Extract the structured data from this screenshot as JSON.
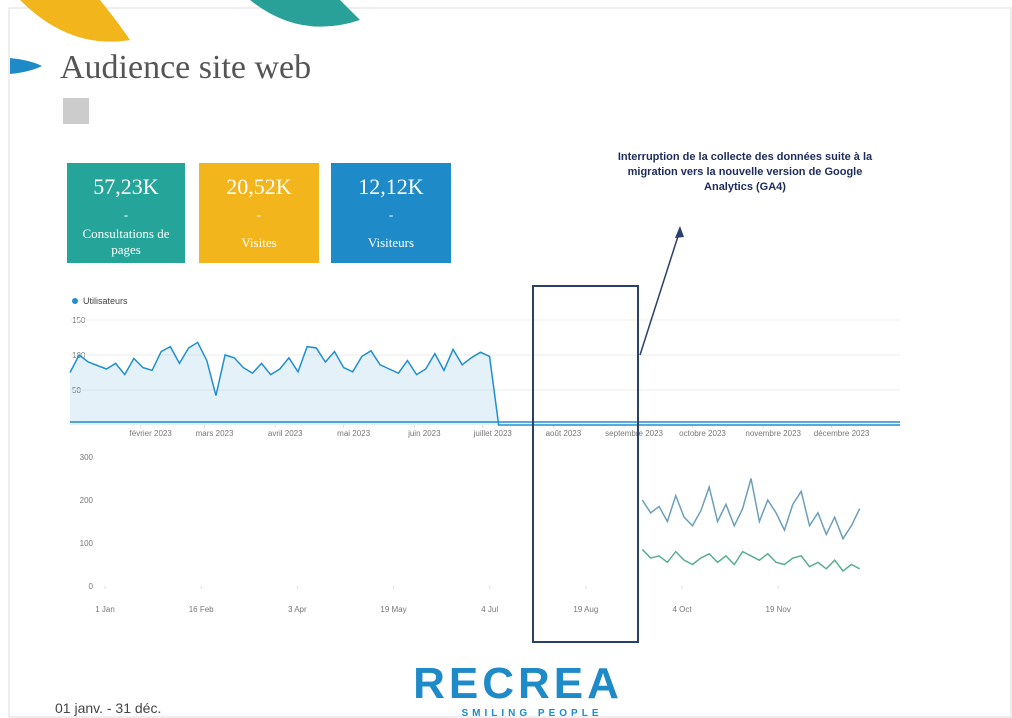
{
  "title": "Audience site web",
  "kpis": [
    {
      "value": "57,23K",
      "separator": "-",
      "label": "Consultations de pages"
    },
    {
      "value": "20,52K",
      "separator": "-",
      "label": "Visites"
    },
    {
      "value": "12,12K",
      "separator": "-",
      "label": "Visiteurs"
    }
  ],
  "annotation": "Interruption de la collecte des données suite à la migration vers la nouvelle version de Google Analytics (GA4)",
  "date_range": "01 janv. - 31 déc.",
  "logo": {
    "name": "RECREA",
    "tagline": "SMILING PEOPLE"
  },
  "chart_data": [
    {
      "type": "line",
      "area": true,
      "grid": true,
      "x": [
        1,
        5,
        9,
        13,
        17,
        21,
        25,
        29,
        33,
        37,
        41,
        45,
        49,
        53,
        57,
        61,
        65,
        69,
        73,
        77,
        81,
        85,
        89,
        93,
        97,
        101,
        105,
        109,
        113,
        117,
        121,
        125,
        129,
        133,
        137,
        141,
        145,
        149,
        153,
        157,
        161,
        165,
        169,
        173,
        177,
        181,
        185,
        189,
        365
      ],
      "series": [
        {
          "name": "Utilisateurs",
          "color": "#1f8fcf",
          "values": [
            75,
            100,
            90,
            85,
            80,
            88,
            72,
            95,
            82,
            78,
            105,
            112,
            88,
            110,
            118,
            92,
            42,
            100,
            96,
            82,
            74,
            88,
            72,
            80,
            96,
            76,
            112,
            110,
            90,
            105,
            82,
            76,
            98,
            106,
            86,
            80,
            74,
            92,
            72,
            80,
            102,
            78,
            108,
            86,
            96,
            104,
            98,
            0,
            0
          ]
        }
      ],
      "xlim": [
        1,
        365
      ],
      "ylim": [
        0,
        150
      ],
      "yticks": [
        50,
        100,
        150
      ],
      "xticks": [
        {
          "value": 32,
          "label": "février 2023"
        },
        {
          "value": 60,
          "label": "mars 2023"
        },
        {
          "value": 91,
          "label": "avril 2023"
        },
        {
          "value": 121,
          "label": "mai 2023"
        },
        {
          "value": 152,
          "label": "juin 2023"
        },
        {
          "value": 182,
          "label": "juillet 2023"
        },
        {
          "value": 213,
          "label": "août 2023"
        },
        {
          "value": 244,
          "label": "septembre 2023"
        },
        {
          "value": 274,
          "label": "octobre 2023"
        },
        {
          "value": 305,
          "label": "novembre 2023"
        },
        {
          "value": 335,
          "label": "décembre 2023"
        }
      ]
    },
    {
      "type": "line",
      "area": false,
      "grid": false,
      "x": [
        258,
        262,
        266,
        270,
        274,
        278,
        282,
        286,
        290,
        294,
        298,
        302,
        306,
        310,
        314,
        318,
        322,
        326,
        330,
        334,
        338,
        342,
        346,
        350,
        354,
        358,
        362
      ],
      "series": [
        {
          "color": "#6b9fba",
          "values": [
            200,
            170,
            185,
            150,
            210,
            160,
            140,
            175,
            230,
            150,
            190,
            140,
            180,
            250,
            150,
            200,
            170,
            130,
            190,
            220,
            140,
            170,
            120,
            160,
            110,
            140,
            180
          ]
        },
        {
          "color": "#5aae8e",
          "values": [
            85,
            65,
            70,
            55,
            80,
            60,
            50,
            65,
            75,
            55,
            70,
            50,
            80,
            70,
            60,
            75,
            55,
            50,
            65,
            70,
            45,
            55,
            40,
            60,
            35,
            50,
            40
          ]
        }
      ],
      "xlim": [
        1,
        365
      ],
      "ylim": [
        0,
        300
      ],
      "yticks": [
        0,
        100,
        200,
        300
      ],
      "xticks": [
        {
          "value": 1,
          "label": "1 Jan"
        },
        {
          "value": 47,
          "label": "16 Feb"
        },
        {
          "value": 93,
          "label": "3 Apr"
        },
        {
          "value": 139,
          "label": "19 May"
        },
        {
          "value": 185,
          "label": "4 Jul"
        },
        {
          "value": 231,
          "label": "19 Aug"
        },
        {
          "value": 277,
          "label": "4 Oct"
        },
        {
          "value": 323,
          "label": "19 Nov"
        }
      ]
    }
  ]
}
